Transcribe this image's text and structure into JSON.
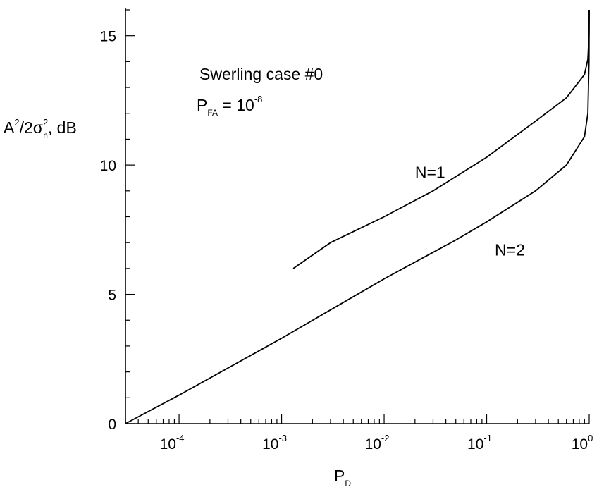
{
  "chart_data": {
    "type": "line",
    "title": "",
    "annotations": {
      "case": "Swerling case #0",
      "pfa_main": "P",
      "pfa_sub": "FA",
      "pfa_eq": " = 10",
      "pfa_exp": "-8"
    },
    "xlabel": {
      "main": "P",
      "sub": "D"
    },
    "ylabel": {
      "A": "A",
      "A_sup": "2",
      "mid": "/2σ",
      "sigma_sup": "2",
      "sigma_sub": "n",
      "tail": ", dB"
    },
    "x_scale": "log",
    "xlim": [
      3e-05,
      1
    ],
    "ylim": [
      0,
      16
    ],
    "x_ticks": [
      {
        "value": 0.0001,
        "base": "10",
        "exp": "-4"
      },
      {
        "value": 0.001,
        "base": "10",
        "exp": "-3"
      },
      {
        "value": 0.01,
        "base": "10",
        "exp": "-2"
      },
      {
        "value": 0.1,
        "base": "10",
        "exp": "-1"
      },
      {
        "value": 1,
        "base": "10",
        "exp": "0"
      }
    ],
    "y_ticks": [
      {
        "value": 0,
        "label": "0"
      },
      {
        "value": 5,
        "label": "5"
      },
      {
        "value": 10,
        "label": "10"
      },
      {
        "value": 15,
        "label": "15"
      }
    ],
    "grid": false,
    "series": [
      {
        "name": "N=1",
        "x": [
          0.0013,
          0.003,
          0.01,
          0.03,
          0.1,
          0.3,
          0.6,
          0.9,
          0.97,
          0.995,
          1.0
        ],
        "y": [
          6.0,
          7.0,
          8.0,
          9.0,
          10.3,
          11.7,
          12.6,
          13.5,
          14.1,
          15.0,
          16.0
        ]
      },
      {
        "name": "N=2",
        "x": [
          3e-05,
          0.0001,
          0.001,
          0.01,
          0.05,
          0.1,
          0.3,
          0.6,
          0.9,
          0.97,
          0.995,
          1.0
        ],
        "y": [
          0.0,
          1.1,
          3.3,
          5.6,
          7.1,
          7.8,
          9.0,
          10.0,
          11.1,
          12.0,
          14.0,
          16.0
        ]
      }
    ],
    "series_labels": [
      {
        "text": "N=1",
        "x": 0.02,
        "y": 9.5
      },
      {
        "text": "N=2",
        "x": 0.12,
        "y": 6.5
      }
    ]
  }
}
